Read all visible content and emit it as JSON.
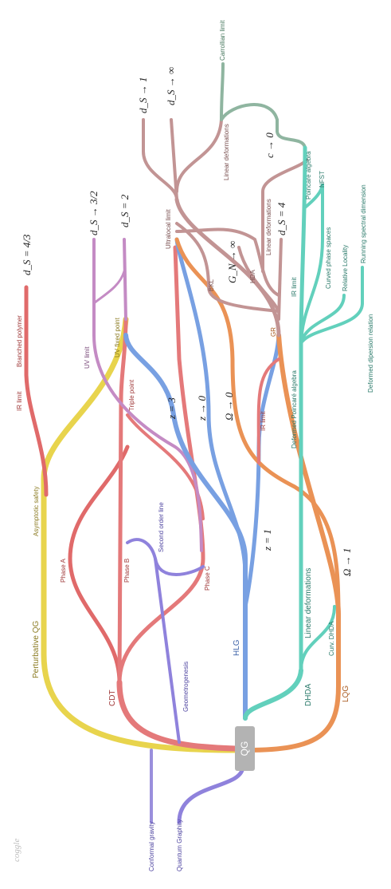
{
  "diagram": {
    "root": "QG",
    "logo": "coggle",
    "colors": {
      "yellow": "#e8d44d",
      "salmon": "#e4797a",
      "red": "#e06a6a",
      "purple": "#8f82dc",
      "violet": "#c48bc4",
      "blue": "#78a0e2",
      "orange": "#ea9255",
      "teal": "#62d0bc",
      "mauve": "#c29494",
      "sage": "#8fb5a0",
      "grey": "#b3b3b3"
    },
    "labels": {
      "perturbative_qg": "Perturbative QG",
      "asymptotic_safety": "Asymptotic safety",
      "ir_limit_1": "IR limit",
      "branched_polymer": "Branched polymer",
      "ds_43": "d_S = 4/3",
      "cdt": "CDT",
      "phase_a": "Phase A",
      "phase_b": "Phase B",
      "phase_c": "Phase C",
      "triple_point": "Triple point",
      "second_order_line": "Second order line",
      "uv_fixed_point": "UV fixed point",
      "uv_limit": "UV limit",
      "ds_32": "d_S → 3/2",
      "ds_2": "d_S = 2",
      "conformal_gravity": "Conformal gravity",
      "geometrogenesis": "Geometrogenesis",
      "quantum_graphity": "Quantum Graphity",
      "hlg": "HLG",
      "z3": "z = 3",
      "z0": "z → 0",
      "z1": "z = 1",
      "omega0": "Ω → 0",
      "ir_limit_2": "IR limit",
      "ultralocal_limit": "Ultralocal limit",
      "ds_1": "d_S → 1",
      "ds_inf": "d_S → ∞",
      "linear_deformations_1": "Linear deformations",
      "carrollian_limit": "Carrollian limit",
      "bkl": "BKL",
      "gn_inf": "G_N → ∞",
      "hda": "HDA",
      "linear_deformations_2": "Linear deformations",
      "gr": "GR",
      "ds_4": "d_S = 4",
      "c0": "c → 0",
      "poincare_algebra": "Poincare algebra",
      "nfst": "NFST",
      "ir_limit_3": "IR limit",
      "curved_phase_spaces": "Curved phase spaces",
      "relative_locality": "Relative Locality",
      "running_spectral_dimension": "Running spectral dimension",
      "deformed_dispersion_relation": "Deformed dipersion relation",
      "deformed_poincare_algebra": "Deformed Poincaré algebra",
      "linear_deformations_3": "Linear deformations",
      "curv_dhda": "Curv. DHDA",
      "dhda": "DHDA",
      "lqg": "LQG",
      "omega1": "Ω → 1"
    }
  }
}
